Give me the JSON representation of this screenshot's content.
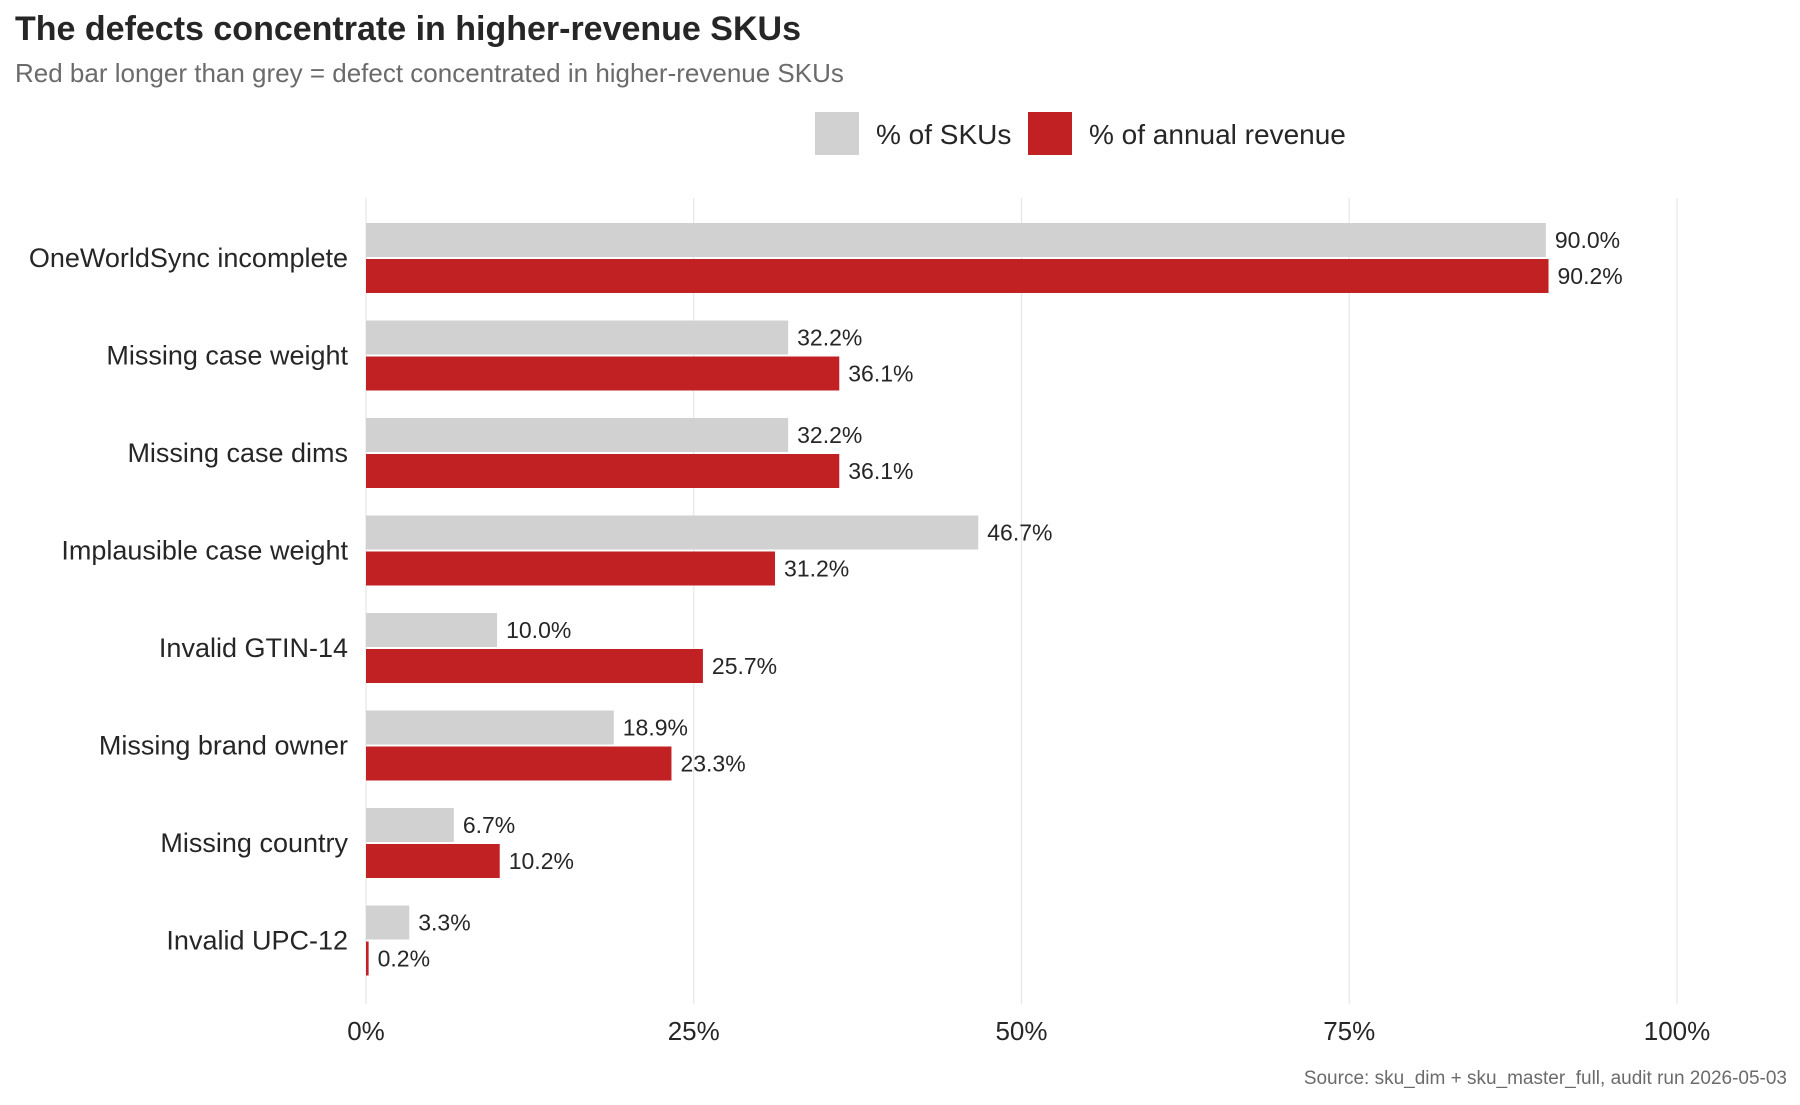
{
  "chart_data": {
    "type": "bar",
    "orientation": "horizontal",
    "title": "The defects concentrate in higher-revenue SKUs",
    "subtitle": "Red bar longer than grey = defect concentrated in higher-revenue SKUs",
    "caption": "Source: sku_dim + sku_master_full, audit run 2026-05-03",
    "categories": [
      "OneWorldSync incomplete",
      "Missing case weight",
      "Missing case dims",
      "Implausible case weight",
      "Invalid GTIN-14",
      "Missing brand owner",
      "Missing country",
      "Invalid UPC-12"
    ],
    "series": [
      {
        "name": "% of SKUs",
        "color": "#d1d1d1",
        "values": [
          90.0,
          32.2,
          32.2,
          46.7,
          10.0,
          18.9,
          6.7,
          3.3
        ],
        "labels": [
          "90.0%",
          "32.2%",
          "32.2%",
          "46.7%",
          "10.0%",
          "18.9%",
          "6.7%",
          "3.3%"
        ]
      },
      {
        "name": "% of annual revenue",
        "color": "#c12122",
        "values": [
          90.2,
          36.1,
          36.1,
          31.2,
          25.7,
          23.3,
          10.2,
          0.2
        ],
        "labels": [
          "90.2%",
          "36.1%",
          "36.1%",
          "31.2%",
          "25.7%",
          "23.3%",
          "10.2%",
          "0.2%"
        ]
      }
    ],
    "xlim": [
      0,
      100
    ],
    "xticks": [
      0,
      25,
      50,
      75,
      100
    ],
    "xtick_labels": [
      "0%",
      "25%",
      "50%",
      "75%",
      "100%"
    ],
    "xlabel": "",
    "ylabel": "",
    "grid": "vertical major gridlines",
    "legend_position": "top"
  }
}
